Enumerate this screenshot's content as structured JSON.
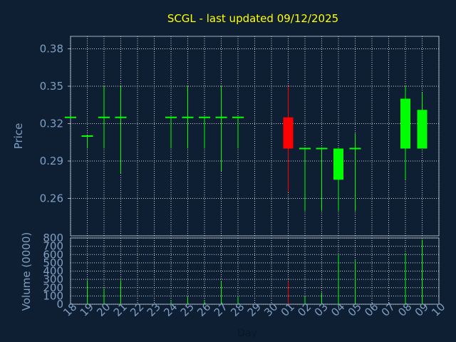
{
  "chart_data": {
    "type": "candlestick",
    "title": "SCGL - last updated 09/12/2025",
    "xlabel": "Day",
    "price_ylabel": "Price",
    "volume_ylabel": "Volume (0000)",
    "price_ticks": [
      "0.38",
      "0.35",
      "0.32",
      "0.29",
      "0.26"
    ],
    "price_tick_values": [
      0.38,
      0.35,
      0.32,
      0.29,
      0.26
    ],
    "price_ylim": [
      0.23,
      0.39
    ],
    "volume_ticks": [
      "800",
      "700",
      "600",
      "500",
      "400",
      "300",
      "200",
      "100",
      "0"
    ],
    "volume_tick_values": [
      800,
      700,
      600,
      500,
      400,
      300,
      200,
      100,
      0
    ],
    "volume_ylim": [
      0,
      800
    ],
    "days": [
      "18",
      "19",
      "20",
      "21",
      "22",
      "23",
      "24",
      "25",
      "26",
      "27",
      "28",
      "29",
      "30",
      "01",
      "02",
      "03",
      "04",
      "05",
      "06",
      "07",
      "08",
      "09",
      "10"
    ],
    "grid": true,
    "colors": {
      "background": "#0f1f33",
      "up": "#00ff00",
      "down": "#ff0000",
      "text": "#7f9fc2",
      "title": "#ffff00",
      "grid": "#d0d0d0",
      "axis": "#a0b0c0"
    },
    "candles": [
      {
        "day": "18",
        "open": 0.325,
        "high": 0.325,
        "low": 0.325,
        "close": 0.325,
        "volume": 0
      },
      {
        "day": "19",
        "open": 0.31,
        "high": 0.31,
        "low": 0.3,
        "close": 0.31,
        "volume": 290
      },
      {
        "day": "20",
        "open": 0.325,
        "high": 0.35,
        "low": 0.3,
        "close": 0.325,
        "volume": 190
      },
      {
        "day": "21",
        "open": 0.325,
        "high": 0.35,
        "low": 0.28,
        "close": 0.325,
        "volume": 290
      },
      {
        "day": "24",
        "open": 0.325,
        "high": 0.325,
        "low": 0.3,
        "close": 0.325,
        "volume": 40
      },
      {
        "day": "25",
        "open": 0.325,
        "high": 0.35,
        "low": 0.3,
        "close": 0.325,
        "volume": 90
      },
      {
        "day": "26",
        "open": 0.325,
        "high": 0.325,
        "low": 0.3,
        "close": 0.325,
        "volume": 40
      },
      {
        "day": "27",
        "open": 0.325,
        "high": 0.35,
        "low": 0.282,
        "close": 0.325,
        "volume": 280
      },
      {
        "day": "28",
        "open": 0.325,
        "high": 0.325,
        "low": 0.3,
        "close": 0.325,
        "volume": 90
      },
      {
        "day": "01",
        "open": 0.325,
        "high": 0.35,
        "low": 0.265,
        "close": 0.3,
        "volume": 280
      },
      {
        "day": "02",
        "open": 0.3,
        "high": 0.3,
        "low": 0.25,
        "close": 0.3,
        "volume": 100
      },
      {
        "day": "03",
        "open": 0.3,
        "high": 0.3,
        "low": 0.25,
        "close": 0.3,
        "volume": 140
      },
      {
        "day": "04",
        "open": 0.275,
        "high": 0.3,
        "low": 0.25,
        "close": 0.3,
        "volume": 600
      },
      {
        "day": "05",
        "open": 0.3,
        "high": 0.312,
        "low": 0.25,
        "close": 0.3,
        "volume": 530
      },
      {
        "day": "08",
        "open": 0.3,
        "high": 0.35,
        "low": 0.275,
        "close": 0.34,
        "volume": 620
      },
      {
        "day": "09",
        "open": 0.3,
        "high": 0.345,
        "low": 0.3,
        "close": 0.331,
        "volume": 780
      }
    ]
  }
}
